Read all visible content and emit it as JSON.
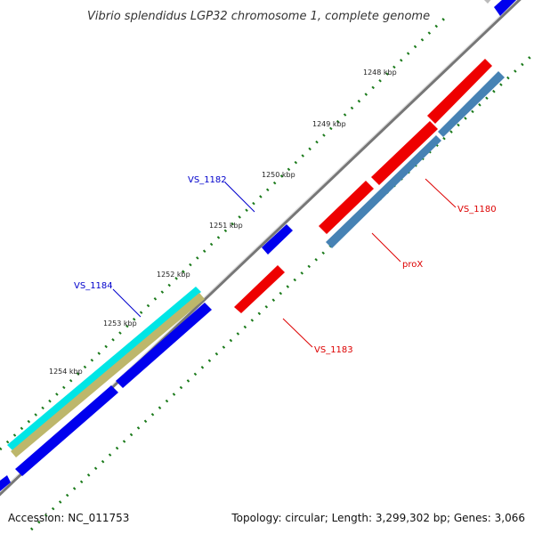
{
  "title": "Vibrio splendidus LGP32 chromosome 1, complete genome",
  "accession": "Accession: NC_011753",
  "summary": "Topology: circular; Length: 3,299,302 bp; Genes: 3,066",
  "kbp_labels": [
    "1248 kbp",
    "1249 kbp",
    "1250 kbp",
    "1251 kbp",
    "1252 kbp",
    "1253 kbp",
    "1254 kbp"
  ],
  "gene_labels": {
    "vs1182": "VS_1182",
    "vs1184": "VS_1184",
    "vs1180": "VS_1180",
    "prox": "proX",
    "vs1183": "VS_1183"
  },
  "colors": {
    "forward_cds": "#0000ee",
    "reverse_cds": "#ee0000",
    "steelblue_feature": "#4682b4",
    "cyan_feature": "#00e5e5",
    "khaki_feature": "#bdb76b",
    "backbone": "#777777",
    "tick_dots": "#1a7a1a",
    "blue_label": "#0000cc",
    "red_label": "#dd0000"
  }
}
